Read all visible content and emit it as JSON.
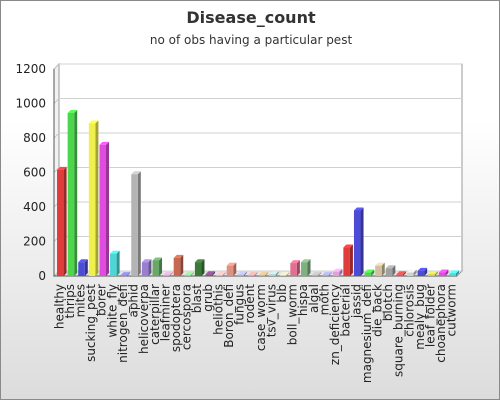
{
  "chart_data": {
    "type": "bar",
    "title": "Disease_count",
    "subtitle": "no of obs having a particular pest",
    "xlabel": "",
    "ylabel": "",
    "ylim": [
      0,
      1200
    ],
    "yticks": [
      0,
      200,
      400,
      600,
      800,
      1000,
      1200
    ],
    "grid": true,
    "legend": "none",
    "categories": [
      "healthy",
      "thrips",
      "mites",
      "sucking_pest",
      "borer",
      "white_fly",
      "nitrogen_defi",
      "aphid",
      "helicoverpa",
      "caterpillar",
      "leafminer",
      "spodoptera",
      "cercospora",
      "blast",
      "grub",
      "heliothis",
      "Boron_defi",
      "fungus",
      "rodent",
      "case_worm",
      "tsv_virus",
      "blb",
      "boll_worm",
      "hispa",
      "algal",
      "moth",
      "zn_deficiency",
      "bacterial",
      "jassid",
      "magnesium_defi",
      "die_back",
      "blotch",
      "square_burning",
      "chlorosis",
      "mealy_bug",
      "leaf_folder",
      "choanephora",
      "cutworm"
    ],
    "values": [
      615,
      945,
      80,
      885,
      760,
      130,
      5,
      590,
      80,
      90,
      5,
      105,
      5,
      80,
      10,
      5,
      60,
      8,
      5,
      5,
      10,
      5,
      75,
      80,
      5,
      5,
      25,
      165,
      380,
      20,
      60,
      45,
      10,
      20,
      30,
      10,
      20,
      15
    ],
    "colors": [
      "#e03c3c",
      "#4cd64c",
      "#4c4cd6",
      "#f0f04c",
      "#e04ce0",
      "#4cd6d6",
      "#8080ff",
      "#b4b4b4",
      "#9a7fd0",
      "#6aa86a",
      "#d0a0c0",
      "#c86850",
      "#8cd08c",
      "#3c7a3c",
      "#8a4c8a",
      "#e8b0b0",
      "#e09080",
      "#b0b0e0",
      "#e0a0a0",
      "#d0b080",
      "#b0d0d0",
      "#d0d0b0",
      "#e07090",
      "#80b080",
      "#b0b0b0",
      "#a0a0e0",
      "#e0a0e0",
      "#e03c3c",
      "#4c4cd6",
      "#4cd64c",
      "#d0c0a0",
      "#a0a0a0",
      "#f04c4c",
      "#d0d0d0",
      "#4c4cd6",
      "#d0d04c",
      "#e04ce0",
      "#4cd6d6"
    ]
  }
}
